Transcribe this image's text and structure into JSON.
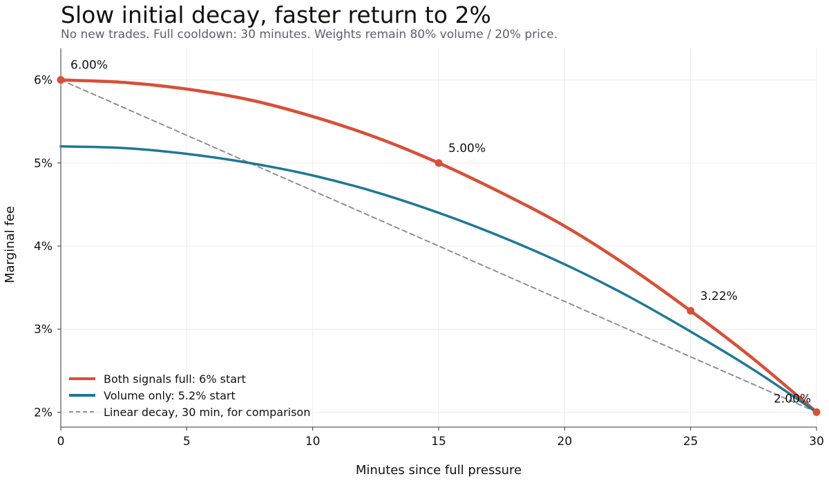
{
  "chart_data": {
    "type": "line",
    "title": "Slow initial decay, faster return to 2%",
    "subtitle": "No new trades. Full cooldown: 30 minutes. Weights remain 80% volume / 20% price.",
    "xlabel": "Minutes since full pressure",
    "ylabel": "Marginal fee",
    "xlim": [
      0,
      30
    ],
    "ylim": [
      1.82,
      6.38
    ],
    "xticks": [
      0,
      5,
      10,
      15,
      20,
      25,
      30
    ],
    "xtick_labels": [
      "0",
      "5",
      "10",
      "15",
      "20",
      "25",
      "30"
    ],
    "yticks": [
      2,
      3,
      4,
      5,
      6
    ],
    "ytick_labels": [
      "2%",
      "3%",
      "4%",
      "5%",
      "6%"
    ],
    "grid": true,
    "legend_position": "bottom-left",
    "series": [
      {
        "name": "Both signals full: 6% start",
        "color": "#d94f37",
        "style": "solid",
        "x": [
          0,
          2.5,
          5,
          7.5,
          10,
          12.5,
          15,
          17.5,
          20,
          22.5,
          25,
          27.5,
          30
        ],
        "y": [
          6.0,
          5.97,
          5.89,
          5.76,
          5.56,
          5.31,
          5.0,
          4.64,
          4.24,
          3.76,
          3.22,
          2.64,
          2.0
        ]
      },
      {
        "name": "Volume only: 5.2% start",
        "color": "#1d7895",
        "style": "solid",
        "x": [
          0,
          2.5,
          5,
          7.5,
          10,
          12.5,
          15,
          17.5,
          20,
          22.5,
          25,
          27.5,
          30
        ],
        "y": [
          5.2,
          5.18,
          5.11,
          5.0,
          4.85,
          4.65,
          4.4,
          4.11,
          3.78,
          3.4,
          2.97,
          2.51,
          2.0
        ]
      },
      {
        "name": "Linear decay, 30 min, for comparison",
        "color": "#8e8e9c",
        "style": "dashed",
        "x": [
          0,
          30
        ],
        "y": [
          6.0,
          2.0
        ]
      }
    ],
    "annotations": [
      {
        "x": 0,
        "y": 6.0,
        "label": "6.00%"
      },
      {
        "x": 15,
        "y": 5.0,
        "label": "5.00%"
      },
      {
        "x": 25,
        "y": 3.22,
        "label": "3.22%"
      },
      {
        "x": 30,
        "y": 2.0,
        "label": "2.00%"
      }
    ]
  }
}
